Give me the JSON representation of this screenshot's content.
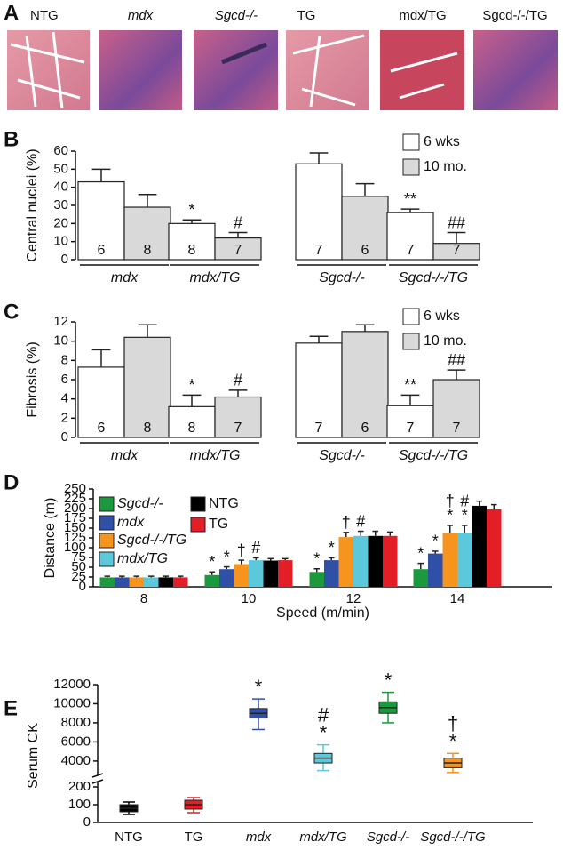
{
  "panel_a": {
    "label": "A",
    "images": [
      "NTG",
      "mdx",
      "Sgcd-/-",
      "TG",
      "mdx/TG",
      "Sgcd-/-/TG"
    ]
  },
  "chart_data": [
    {
      "panel": "B",
      "type": "bar",
      "ylabel": "Central nuclei (%)",
      "categories": [
        "mdx",
        "mdx/TG",
        "Sgcd-/-",
        "Sgcd-/-/TG"
      ],
      "series": [
        {
          "name": "6 wks",
          "color": "#ffffff",
          "values": [
            43,
            20,
            53,
            26
          ],
          "errors": [
            7,
            2,
            6,
            2
          ],
          "n": [
            6,
            8,
            7,
            7
          ],
          "annotations": [
            null,
            [
              "*"
            ],
            null,
            [
              "**"
            ]
          ]
        },
        {
          "name": "10 mo.",
          "color": "#d9d9d9",
          "values": [
            29,
            12,
            35,
            9
          ],
          "errors": [
            7,
            3,
            7,
            6
          ],
          "n": [
            8,
            7,
            6,
            7
          ],
          "annotations": [
            null,
            [
              "#"
            ],
            null,
            [
              "##"
            ]
          ]
        }
      ],
      "ylim": [
        0,
        60
      ],
      "yticks": [
        0,
        10,
        20,
        30,
        40,
        50,
        60
      ],
      "legend": "upper right"
    },
    {
      "panel": "C",
      "type": "bar",
      "ylabel": "Fibrosis (%)",
      "categories": [
        "mdx",
        "mdx/TG",
        "Sgcd-/-",
        "Sgcd-/-/TG"
      ],
      "series": [
        {
          "name": "6 wks",
          "color": "#ffffff",
          "values": [
            7.3,
            3.2,
            9.8,
            3.3
          ],
          "errors": [
            1.8,
            1.2,
            0.7,
            1.1
          ],
          "n": [
            6,
            8,
            7,
            7
          ],
          "annotations": [
            null,
            [
              "*"
            ],
            null,
            [
              "**"
            ]
          ]
        },
        {
          "name": "10 mo.",
          "color": "#d9d9d9",
          "values": [
            10.4,
            4.2,
            11.0,
            6.0
          ],
          "errors": [
            1.3,
            0.7,
            0.7,
            1.0
          ],
          "n": [
            8,
            7,
            6,
            7
          ],
          "annotations": [
            null,
            [
              "#"
            ],
            null,
            [
              "##"
            ]
          ]
        }
      ],
      "ylim": [
        0,
        12
      ],
      "yticks": [
        0,
        2,
        4,
        6,
        8,
        10,
        12
      ],
      "legend": "upper right"
    },
    {
      "panel": "D",
      "type": "bar",
      "ylabel": "Distance (m)",
      "xlabel": "Speed (m/min)",
      "categories": [
        "8",
        "10",
        "12",
        "14"
      ],
      "series": [
        {
          "name": "Sgcd-/-",
          "color": "#1a9a3c",
          "values": [
            24,
            30,
            38,
            45
          ],
          "errors": [
            3,
            8,
            8,
            15
          ],
          "annotations": [
            null,
            [
              "*"
            ],
            [
              "*"
            ],
            [
              "*"
            ]
          ]
        },
        {
          "name": "mdx",
          "color": "#3050a8",
          "values": [
            24,
            45,
            68,
            85
          ],
          "errors": [
            3,
            6,
            6,
            6
          ],
          "annotations": [
            null,
            [
              "*"
            ],
            [
              "*"
            ],
            [
              "*"
            ]
          ]
        },
        {
          "name": "Sgcd-/-/TG",
          "color": "#f7941d",
          "values": [
            24,
            58,
            127,
            137
          ],
          "errors": [
            3,
            10,
            12,
            20
          ],
          "annotations": [
            null,
            [
              "†"
            ],
            [
              "†"
            ],
            [
              "†",
              "*"
            ]
          ]
        },
        {
          "name": "mdx/TG",
          "color": "#5bc8dc",
          "values": [
            24,
            68,
            130,
            137
          ],
          "errors": [
            3,
            6,
            12,
            20
          ],
          "annotations": [
            null,
            [
              "#"
            ],
            [
              "#"
            ],
            [
              "#",
              "*"
            ]
          ]
        },
        {
          "name": "NTG",
          "color": "#000000",
          "values": [
            24,
            67,
            130,
            207
          ],
          "errors": [
            3,
            5,
            12,
            12
          ],
          "annotations": [
            null,
            null,
            null,
            null
          ]
        },
        {
          "name": "TG",
          "color": "#e41e26",
          "values": [
            24,
            68,
            130,
            198
          ],
          "errors": [
            3,
            4,
            10,
            12
          ],
          "annotations": [
            null,
            null,
            null,
            null
          ]
        }
      ],
      "ylim": [
        0,
        250
      ],
      "yticks": [
        0,
        25,
        50,
        75,
        100,
        125,
        150,
        175,
        200,
        225,
        250
      ],
      "legend": "upper left"
    },
    {
      "panel": "E",
      "type": "box",
      "ylabel": "Serum CK",
      "categories": [
        "NTG",
        "TG",
        "mdx",
        "mdx/TG",
        "Sgcd-/-",
        "Sgcd-/-/TG"
      ],
      "boxes": [
        {
          "color": "#000000",
          "median": 80,
          "q1": 60,
          "q3": 100,
          "whisker_low": 45,
          "whisker_high": 115,
          "annotations": null
        },
        {
          "color": "#e41e26",
          "median": 100,
          "q1": 75,
          "q3": 125,
          "whisker_low": 55,
          "whisker_high": 140,
          "annotations": null
        },
        {
          "color": "#3050a8",
          "median": 9000,
          "q1": 8500,
          "q3": 9500,
          "whisker_low": 7300,
          "whisker_high": 10500,
          "annotations": [
            "*"
          ]
        },
        {
          "color": "#5bc8dc",
          "median": 4300,
          "q1": 3800,
          "q3": 4800,
          "whisker_low": 3000,
          "whisker_high": 5700,
          "annotations": [
            "#",
            "*"
          ]
        },
        {
          "color": "#1a9a3c",
          "median": 9600,
          "q1": 9000,
          "q3": 10200,
          "whisker_low": 8000,
          "whisker_high": 11200,
          "annotations": [
            "*"
          ]
        },
        {
          "color": "#f7941d",
          "median": 3800,
          "q1": 3300,
          "q3": 4300,
          "whisker_low": 2800,
          "whisker_high": 4800,
          "annotations": [
            "†",
            "*"
          ]
        }
      ],
      "ylim_lower": [
        0,
        200
      ],
      "yticks_lower": [
        0,
        100,
        200
      ],
      "ylim_upper": [
        2500,
        12000
      ],
      "yticks_upper": [
        4000,
        6000,
        8000,
        10000,
        12000
      ]
    }
  ]
}
